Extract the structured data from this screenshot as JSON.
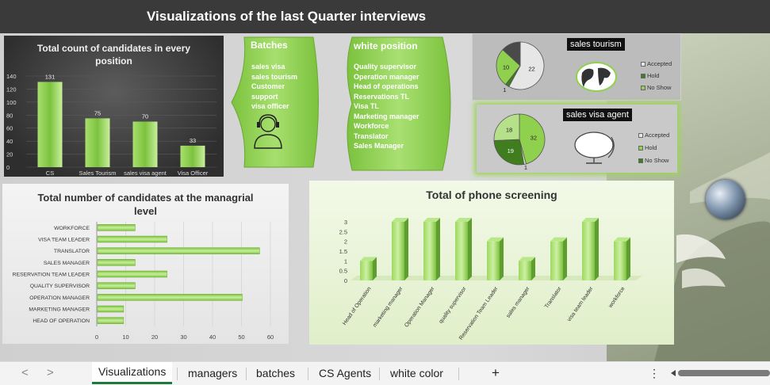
{
  "title": "Visualizations of the last Quarter interviews",
  "charts": {
    "total": {
      "title": "Total count of candidates in every position",
      "yticks": [
        "140",
        "120",
        "100",
        "80",
        "60",
        "40",
        "20",
        "0"
      ],
      "categories": [
        "CS",
        "Sales Tourism",
        "sales visa agent",
        "Visa Officer"
      ],
      "values": [
        131,
        75,
        70,
        33
      ],
      "value_labels": [
        "131",
        "75",
        "70",
        "33"
      ]
    },
    "managerial": {
      "title": "Total number of candidates at the managrial level",
      "categories": [
        "WORKFORCE",
        "VISA TEAM LEADER",
        "TRANSLATOR",
        "SALES MANAGER",
        "RESERVATION TEAM LEADER",
        "QUALITY SUPERVISOR",
        "OPERATION MANAGER",
        "MARKETING MANAGER",
        "HEAD OF OPERATION"
      ],
      "values": [
        13,
        24,
        56,
        13,
        24,
        13,
        50,
        9,
        9
      ],
      "xticks": [
        "0",
        "10",
        "20",
        "30",
        "40",
        "50",
        "60"
      ]
    },
    "phone": {
      "title": "Total of phone screening",
      "yticks": [
        "3",
        "2.5",
        "2",
        "1.5",
        "1",
        "0.5",
        "0"
      ],
      "categories": [
        "Head of Operation",
        "marketing manager",
        "Operation Manager",
        "quality supervisor",
        "Reservation Team Leader",
        "sales manager",
        "Translator",
        "visa team leader",
        "workforce"
      ],
      "values": [
        1,
        3,
        3,
        3,
        2,
        1,
        2,
        3,
        2
      ]
    },
    "tourism_pie": {
      "title": "sales tourism",
      "slices": [
        {
          "label": "22",
          "value": 22,
          "color": "#e6e6e6"
        },
        {
          "label": "1",
          "value": 1,
          "color": "#3f7d1e"
        },
        {
          "label": "10",
          "value": 10,
          "color": "#8fd14f"
        },
        {
          "label": "",
          "value": 5,
          "color": "#4a4a4a"
        }
      ],
      "legend": [
        "Accepted",
        "Hold",
        "No Show"
      ]
    },
    "visa_pie": {
      "title": "sales visa agent",
      "slices": [
        {
          "label": "32",
          "value": 32,
          "color": "#8fd14f"
        },
        {
          "label": "1",
          "value": 1,
          "color": "#cfe8b0"
        },
        {
          "label": "19",
          "value": 19,
          "color": "#3f7d1e"
        },
        {
          "label": "18",
          "value": 18,
          "color": "#b7e08a"
        }
      ],
      "legend": [
        "Accepted",
        "Hold",
        "No Show"
      ]
    }
  },
  "shapes": {
    "batches": {
      "title": "Batches",
      "items": [
        "sales visa",
        "sales tourism",
        "Customer",
        "support",
        "visa officer"
      ]
    },
    "white": {
      "title": "white position",
      "items": [
        "Quality supervisor",
        "Operation manager",
        "Head of operations",
        "Reservations TL",
        "Visa TL",
        "Marketing manager",
        "Workforce",
        "Translator",
        "Sales Manager"
      ]
    }
  },
  "colors": {
    "accent": "#8fd14f",
    "dark": "#3a3a3a",
    "tab_active": "#1f7a3a"
  },
  "tabs": {
    "active": "Visualizations",
    "others": [
      "managers",
      "batches",
      "CS Agents",
      "white color"
    ],
    "add": "+",
    "more": "⋮",
    "prev": "<",
    "next": ">"
  }
}
